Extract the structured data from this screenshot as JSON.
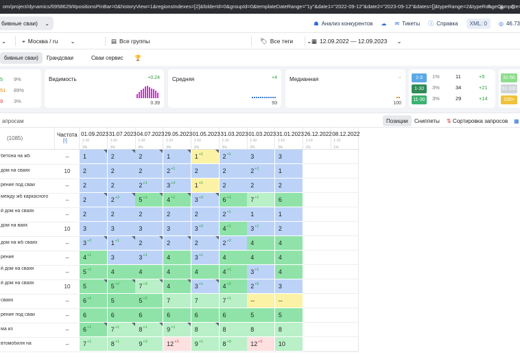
{
  "browser": {
    "url": "om/project/dynamics/6958629/#positionsPinBar=0&historyView=1&regionsIndexes=[2]&folderId=0&groupId=0&templateDateRange=\"1y\"&date1=\"2022-09-12\"&date2=\"2023-09-12\"&dates=[]&typeRange=2&typeRangeCompare=7"
  },
  "topbar": {
    "project": "бивные сваи)",
    "competitors": "Анализ конкурентов",
    "tickets": "Тикеты",
    "help": "Справка",
    "xml": "XML: 0",
    "balance": "46.73"
  },
  "filters": {
    "region": "Москва / ru",
    "groups": "Все группы",
    "tags": "Все теги",
    "daterange": "12.09.2022 — 12.09.2023"
  },
  "tabs": [
    "бивные сваи)",
    "Грандсваи",
    "Сваи сервис"
  ],
  "left_mini": [
    {
      "a": "5",
      "b": "9%"
    },
    {
      "a": "51",
      "b": "89%"
    },
    {
      "a": "9",
      "b": "3%"
    }
  ],
  "cards": {
    "visibility": {
      "title": "Видимость",
      "delta": "+0.24",
      "value": "0.39",
      "bars": [
        0.35,
        0.5,
        0.65,
        0.8,
        0.95,
        1.0,
        0.9,
        0.8,
        0.7,
        0.6,
        0.45
      ]
    },
    "average": {
      "title": "Средняя",
      "delta": "+4",
      "value": "93"
    },
    "median": {
      "title": "Медианная",
      "delta": "--",
      "value": "100"
    }
  },
  "stats": [
    {
      "range": "1-3",
      "pct": "1%",
      "count": "11",
      "delta": "+5",
      "color": "#5aa9e6"
    },
    {
      "range": "1-10",
      "pct": "3%",
      "count": "34",
      "delta": "+21",
      "color": "#2e8b57"
    },
    {
      "range": "11-30",
      "pct": "3%",
      "count": "29",
      "delta": "+14",
      "color": "#3cb371"
    }
  ],
  "stats_right": [
    {
      "label": "31-50",
      "color": "#8ddc8d"
    },
    {
      "label": "51-100",
      "color": "#cfd4da"
    },
    {
      "label": "100+",
      "color": "#f0c23a"
    }
  ],
  "toolbar": {
    "queries": "апросам",
    "positions": "Позиции",
    "snippets": "Сниппеты",
    "sort": "Сортировка запросов"
  },
  "table": {
    "count": "(1085)",
    "freq_label": "Частота",
    "freq_sub": "[!]",
    "dates": [
      "01.09.2023",
      "31.07.2023",
      "04.07.2023",
      "29.05.2023",
      "01.05.2023",
      "31.03.2023",
      "01.03.2023",
      "31.01.2023",
      "26.12.2022",
      "08.12.2022"
    ],
    "subs": [
      [
        "1-10",
        "-",
        "3%"
      ],
      [
        "1-10",
        "-",
        "3%"
      ],
      [
        "1-10",
        "-",
        "4%"
      ],
      [
        "1-10",
        "-",
        "3%"
      ],
      [
        "1-10",
        "-",
        "3%"
      ],
      [
        "1-10",
        "-",
        "3%"
      ],
      [
        "1-10",
        "-",
        "3%"
      ],
      [
        "1-10",
        "-",
        "3%"
      ],
      [
        "1-10",
        "-",
        "1%"
      ],
      [
        "1-10",
        "-",
        "1%"
      ]
    ],
    "rows": [
      {
        "kw": "бетона на жб",
        "f": "--",
        "c": [
          [
            "1",
            "",
            ""
          ],
          [
            "2",
            "",
            ""
          ],
          [
            "2",
            "",
            ""
          ],
          [
            "1",
            "",
            ""
          ],
          [
            "1",
            "+1",
            "y"
          ],
          [
            "2",
            "+1",
            ""
          ],
          [
            "3",
            "",
            ""
          ],
          [
            "3",
            "",
            ""
          ]
        ]
      },
      {
        "kw": "дом на сваях",
        "f": "10",
        "c": [
          [
            "2",
            "",
            ""
          ],
          [
            "2",
            "",
            ""
          ],
          [
            "2",
            "",
            ""
          ],
          [
            "2",
            "+1",
            ""
          ],
          [
            "2",
            "",
            ""
          ],
          [
            "2",
            "",
            ""
          ],
          [
            "2",
            "+1",
            ""
          ],
          [
            "1",
            "",
            ""
          ]
        ]
      },
      {
        "kw": "рение под сваи",
        "f": "--",
        "c": [
          [
            "2",
            "",
            ""
          ],
          [
            "2",
            "",
            ""
          ],
          [
            "2",
            "+1",
            ""
          ],
          [
            "3",
            "+2",
            ""
          ],
          [
            "1",
            "+1",
            "y"
          ],
          [
            "2",
            "",
            ""
          ],
          [
            "2",
            "",
            ""
          ],
          [
            "2",
            "",
            ""
          ]
        ]
      },
      {
        "kw": "между жб\nкаркасного",
        "f": "--",
        "c": [
          [
            "2",
            "",
            ""
          ],
          [
            "2",
            "+3",
            ""
          ],
          [
            "5",
            "+1",
            ""
          ],
          [
            "4",
            "+1",
            ""
          ],
          [
            "3",
            "+3",
            ""
          ],
          [
            "6",
            "+1",
            ""
          ],
          [
            "7",
            "+1",
            ""
          ],
          [
            "6",
            "",
            ""
          ]
        ]
      },
      {
        "kw": "й дом на\nсваях",
        "f": "--",
        "c": [
          [
            "2",
            "",
            ""
          ],
          [
            "2",
            "",
            ""
          ],
          [
            "2",
            "",
            ""
          ],
          [
            "2",
            "",
            ""
          ],
          [
            "2",
            "",
            ""
          ],
          [
            "2",
            "+1",
            ""
          ],
          [
            "1",
            "",
            ""
          ],
          [
            "1",
            "",
            ""
          ]
        ]
      },
      {
        "kw": "дом на\nваях",
        "f": "10",
        "c": [
          [
            "3",
            "",
            ""
          ],
          [
            "3",
            "",
            ""
          ],
          [
            "3",
            "",
            ""
          ],
          [
            "3",
            "",
            ""
          ],
          [
            "3",
            "+2",
            ""
          ],
          [
            "4",
            "+1",
            ""
          ],
          [
            "3",
            "+1",
            ""
          ],
          [
            "2",
            "",
            ""
          ]
        ]
      },
      {
        "kw": "дом на жб сваях",
        "f": "--",
        "c": [
          [
            "3",
            "+2",
            ""
          ],
          [
            "1",
            "+1",
            ""
          ],
          [
            "2",
            "",
            ""
          ],
          [
            "2",
            "",
            ""
          ],
          [
            "2",
            "",
            ""
          ],
          [
            "2",
            "+2",
            ""
          ],
          [
            "4",
            "",
            ""
          ],
          [
            "4",
            "",
            ""
          ]
        ]
      },
      {
        "kw": "рение",
        "f": "--",
        "c": [
          [
            "4",
            "+1",
            ""
          ],
          [
            "3",
            "",
            ""
          ],
          [
            "3",
            "+1",
            ""
          ],
          [
            "4",
            "",
            ""
          ],
          [
            "3",
            "+1",
            ""
          ],
          [
            "4",
            "",
            ""
          ],
          [
            "4",
            "",
            ""
          ],
          [
            "4",
            "",
            ""
          ]
        ]
      },
      {
        "kw": "й дом на\nсваях",
        "f": "--",
        "c": [
          [
            "5",
            "+1",
            ""
          ],
          [
            "4",
            "",
            ""
          ],
          [
            "4",
            "",
            ""
          ],
          [
            "4",
            "",
            ""
          ],
          [
            "4",
            "",
            ""
          ],
          [
            "4",
            "+1",
            ""
          ],
          [
            "3",
            "+1",
            ""
          ],
          [
            "4",
            "",
            ""
          ]
        ]
      },
      {
        "kw": "й дом на\nсваях",
        "f": "10",
        "c": [
          [
            "5",
            "",
            ""
          ],
          [
            "5",
            "+2",
            ""
          ],
          [
            "7",
            "+3",
            ""
          ],
          [
            "4",
            "",
            ""
          ],
          [
            "3",
            "+1",
            ""
          ],
          [
            "4",
            "+2",
            ""
          ],
          [
            "2",
            "+5",
            ""
          ],
          [
            "3",
            "",
            ""
          ]
        ]
      },
      {
        "kw": "сваях",
        "f": "--",
        "c": [
          [
            "6",
            "+1",
            ""
          ],
          [
            "5",
            "",
            ""
          ],
          [
            "5",
            "+2",
            ""
          ],
          [
            "7",
            "",
            ""
          ],
          [
            "7",
            "",
            ""
          ],
          [
            "7",
            "+1",
            ""
          ],
          [
            "--",
            "",
            "y"
          ],
          [
            "--",
            "",
            "y"
          ]
        ]
      },
      {
        "kw": "рение под сваи",
        "f": "--",
        "c": [
          [
            "6",
            "",
            ""
          ],
          [
            "6",
            "",
            ""
          ],
          [
            "6",
            "",
            ""
          ],
          [
            "6",
            "",
            ""
          ],
          [
            "6",
            "",
            ""
          ],
          [
            "6",
            "",
            ""
          ],
          [
            "5",
            "",
            ""
          ],
          [
            "5",
            "",
            ""
          ]
        ]
      },
      {
        "kw": "ма из",
        "f": "--",
        "c": [
          [
            "6",
            "+1",
            ""
          ],
          [
            "7",
            "+1",
            ""
          ],
          [
            "8",
            "+1",
            ""
          ],
          [
            "9",
            "+1",
            ""
          ],
          [
            "8",
            "",
            ""
          ],
          [
            "8",
            "",
            ""
          ],
          [
            "8",
            "",
            ""
          ],
          [
            "8",
            "",
            ""
          ]
        ]
      },
      {
        "kw": "втомобиля на",
        "f": "--",
        "c": [
          [
            "7",
            "+1",
            ""
          ],
          [
            "8",
            "+1",
            ""
          ],
          [
            "9",
            "+3",
            ""
          ],
          [
            "12",
            "+3",
            ""
          ],
          [
            "9",
            "+1",
            ""
          ],
          [
            "8",
            "+9",
            ""
          ],
          [
            "12",
            "+2",
            ""
          ],
          [
            "10",
            "",
            ""
          ]
        ]
      }
    ]
  }
}
